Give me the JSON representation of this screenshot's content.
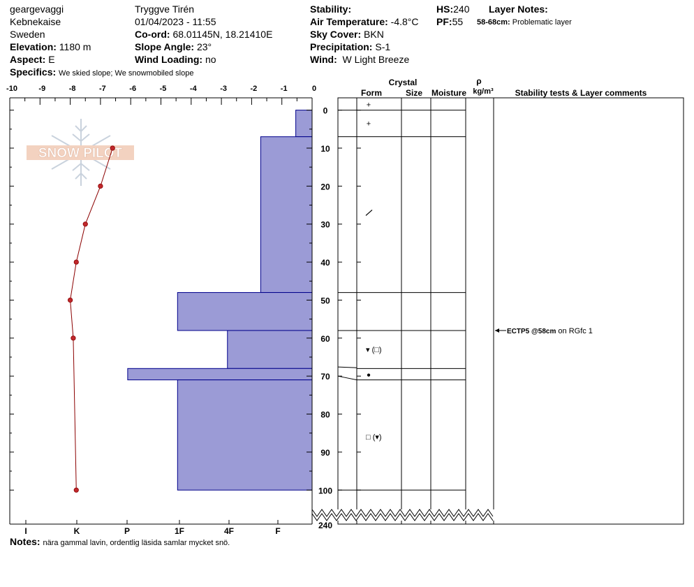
{
  "header": {
    "location_name": "geargevaggi",
    "range": "Kebnekaise",
    "country": "Sweden",
    "elevation_label": "Elevation:",
    "elevation_value": "1180 m",
    "aspect_label": "Aspect:",
    "aspect_value": "E",
    "specifics_label": "Specifics:",
    "specifics_value": "We skied slope; We snowmobiled slope",
    "observer": "Tryggve  Tirén",
    "datetime": "01/04/2023 - 11:55",
    "coord_label": "Co-ord:",
    "coord_value": "68.01145N, 18.21410E",
    "slope_label": "Slope Angle:",
    "slope_value": "23°",
    "wind_loading_label": "Wind Loading:",
    "wind_loading_value": "no",
    "stability_label": "Stability:",
    "stability_value": "",
    "air_temp_label": "Air Temperature:",
    "air_temp_value": "-4.8°C",
    "sky_label": "Sky Cover:",
    "sky_value": "BKN",
    "precip_label": "Precipitation:",
    "precip_value": "S-1",
    "wind_label": "Wind:",
    "wind_value": "W Light Breeze",
    "hs_label": "HS:",
    "hs_value": "240",
    "pf_label": "PF:",
    "pf_value": "55",
    "layer_notes_label": "Layer Notes:",
    "layer_note_depth": "58-68cm:",
    "layer_note_text": "Problematic layer"
  },
  "logo_text": "SNOW PILOT",
  "notes_label": "Notes:",
  "notes_value": "nära gammal lavin, ordentlig läsida samlar mycket snö.",
  "table_headers": {
    "crystal": "Crystal",
    "form": "Form",
    "size": "Size",
    "moisture": "Moisture",
    "rho": "ρ",
    "density_unit": "kg/m³",
    "stability": "Stability tests & Layer comments"
  },
  "colors": {
    "hardness_fill": "#9b9bd6",
    "hardness_stroke": "#00008b",
    "temp_line": "#8b0000",
    "temp_point": "#c0282c"
  },
  "chart_data": {
    "type": "snow_profile",
    "depth_axis": {
      "label": "",
      "ticks": [
        0,
        10,
        20,
        30,
        40,
        50,
        60,
        70,
        80,
        90,
        100
      ],
      "break_label": "240",
      "range": [
        0,
        100
      ]
    },
    "temperature_axis": {
      "ticks": [
        "-10",
        "-9",
        "-8",
        "-7",
        "-6",
        "-5",
        "-4",
        "-3",
        "-2",
        "-1",
        "0"
      ],
      "range": [
        -10,
        0
      ]
    },
    "hardness_axis": {
      "ticks": [
        "I",
        "K",
        "P",
        "1F",
        "4F",
        "F"
      ]
    },
    "temperature_profile": [
      {
        "depth": 10,
        "temp": -6.6
      },
      {
        "depth": 20,
        "temp": -7.0
      },
      {
        "depth": 30,
        "temp": -7.5
      },
      {
        "depth": 40,
        "temp": -7.8
      },
      {
        "depth": 50,
        "temp": -8.0
      },
      {
        "depth": 60,
        "temp": -7.9
      },
      {
        "depth": 100,
        "temp": -7.8
      }
    ],
    "layers": [
      {
        "top": 0,
        "bottom": 7,
        "hardness": 0.54,
        "form": "+"
      },
      {
        "top": 7,
        "bottom": 48,
        "hardness": 1.7,
        "form": "/"
      },
      {
        "top": 48,
        "bottom": 58,
        "hardness": 4.45,
        "form": ""
      },
      {
        "top": 58,
        "bottom": 68,
        "hardness": 2.8,
        "form": "▾ (□)"
      },
      {
        "top": 68,
        "bottom": 71,
        "hardness": 6.1,
        "form": "●"
      },
      {
        "top": 71,
        "bottom": 100,
        "hardness": 4.45,
        "form": "□ (▾)"
      }
    ],
    "form_symbols": [
      {
        "depth": -1.5,
        "symbol": "+"
      },
      {
        "depth": 3.5,
        "symbol": "+"
      },
      {
        "depth": 27,
        "symbol": "/"
      },
      {
        "depth": 63,
        "symbol": "▾ (□)"
      },
      {
        "depth": 69.5,
        "symbol": "●"
      },
      {
        "depth": 86,
        "symbol": "□ (▾)"
      }
    ],
    "stability_tests": [
      {
        "depth": 58,
        "result": "ECTP5 @58cm",
        "comment": "on RGfc 1"
      }
    ]
  }
}
